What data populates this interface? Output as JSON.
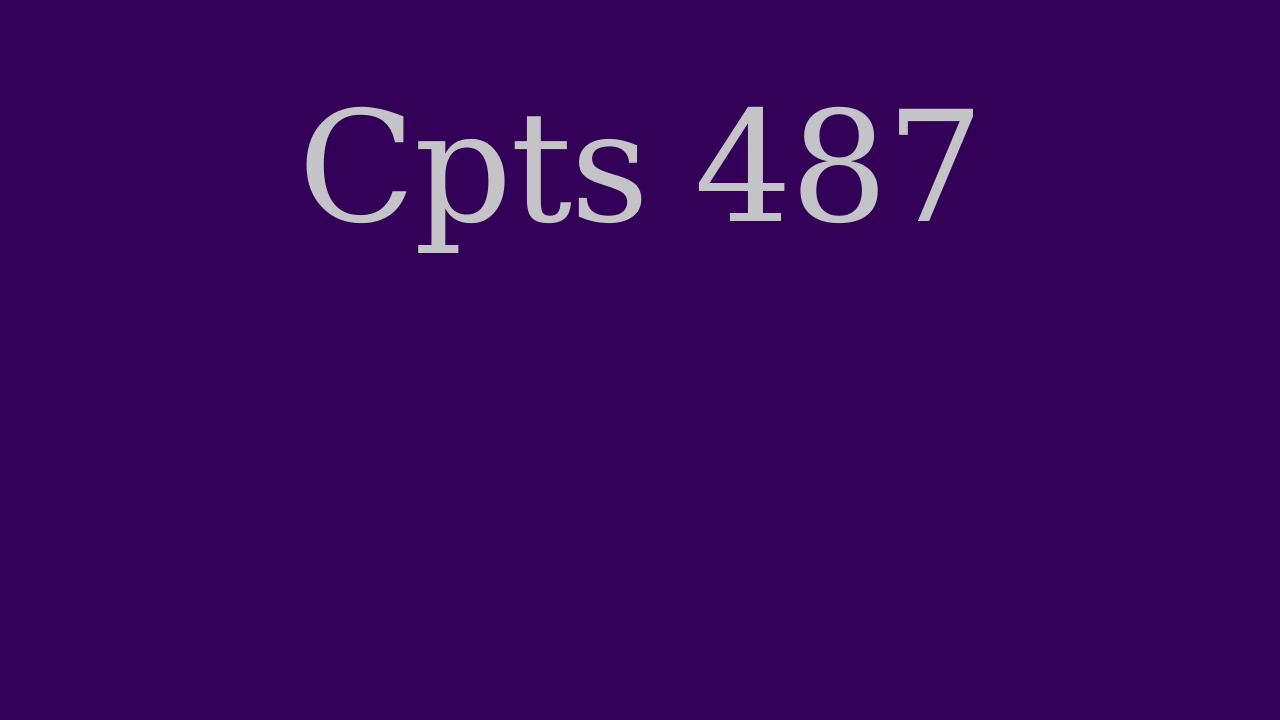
{
  "slide": {
    "title": "Cpts 487",
    "background_color": "#320057",
    "title_color": "#c4c3c7"
  }
}
